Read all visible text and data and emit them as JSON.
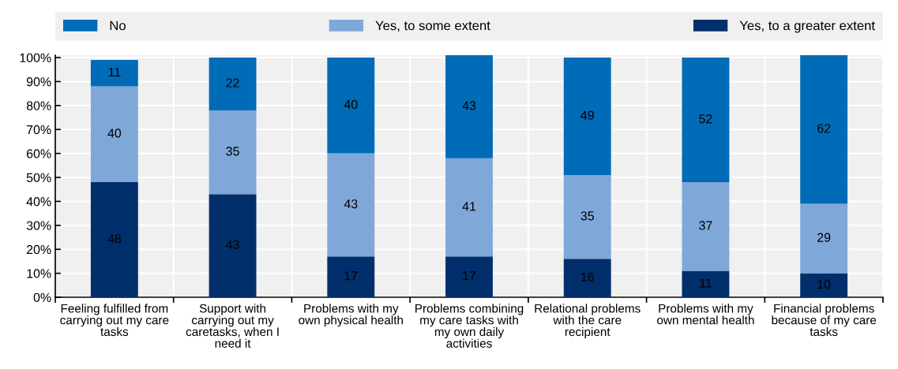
{
  "chart_data": {
    "type": "bar",
    "stacked": true,
    "categories": [
      "Feeling fulfilled from carrying out my care tasks",
      "Support with carrying out my caretasks, when I need it",
      "Problems with my own physical health",
      "Problems combining my care tasks with my own daily activities",
      "Relational problems with the care recipient",
      "Problems with my own mental health",
      "Financial problems because of my care tasks"
    ],
    "series": [
      {
        "name": "Yes, to a greater extent",
        "color": "#002f6c",
        "values": [
          48,
          43,
          17,
          17,
          16,
          11,
          10
        ]
      },
      {
        "name": "Yes, to some extent",
        "color": "#7fa8d9",
        "values": [
          40,
          35,
          43,
          41,
          35,
          37,
          29
        ]
      },
      {
        "name": "No",
        "color": "#006bb6",
        "values": [
          11,
          22,
          40,
          43,
          49,
          52,
          62
        ]
      }
    ],
    "ylim": [
      0,
      101
    ],
    "yticks": [
      {
        "value": 0,
        "label": "0%"
      },
      {
        "value": 10,
        "label": "10%"
      },
      {
        "value": 20,
        "label": "20%"
      },
      {
        "value": 30,
        "label": "30%"
      },
      {
        "value": 40,
        "label": "40%"
      },
      {
        "value": 50,
        "label": "50%"
      },
      {
        "value": 60,
        "label": "60%"
      },
      {
        "value": 70,
        "label": "70%"
      },
      {
        "value": 80,
        "label": "80%"
      },
      {
        "value": 90,
        "label": "90%"
      },
      {
        "value": 100,
        "label": "100%"
      }
    ],
    "grid": true,
    "legend": "top",
    "data_labels": true
  }
}
